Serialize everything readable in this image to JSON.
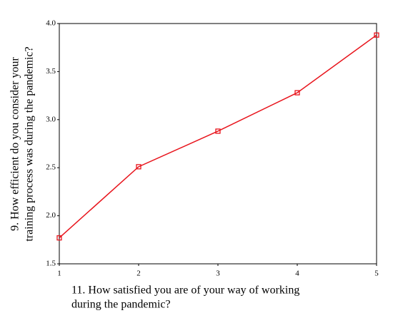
{
  "chart_data": {
    "type": "line",
    "xlabel": [
      "11. How satisfied you are of  your way of working",
      "during the pandemic?"
    ],
    "ylabel": [
      "9. How efficient do you consider your",
      "training process was during the pandemic?"
    ],
    "x": [
      1,
      2,
      3,
      4,
      5
    ],
    "series": [
      {
        "color": "#e8141c",
        "values": [
          1.77,
          2.51,
          2.88,
          3.28,
          3.88
        ]
      }
    ],
    "xlim": [
      1,
      5
    ],
    "xticks": [
      1,
      2,
      3,
      4,
      5
    ],
    "ylim": [
      1.5,
      4.0
    ],
    "yticks": [
      {
        "value": 1.5,
        "label": "1.5"
      },
      {
        "value": 2.0,
        "label": "2.0"
      },
      {
        "value": 2.5,
        "label": "2.5"
      },
      {
        "value": 3.0,
        "label": "3.0"
      },
      {
        "value": 3.5,
        "label": "3.5"
      },
      {
        "value": 4.0,
        "label": "4.0"
      }
    ],
    "grid": false
  }
}
